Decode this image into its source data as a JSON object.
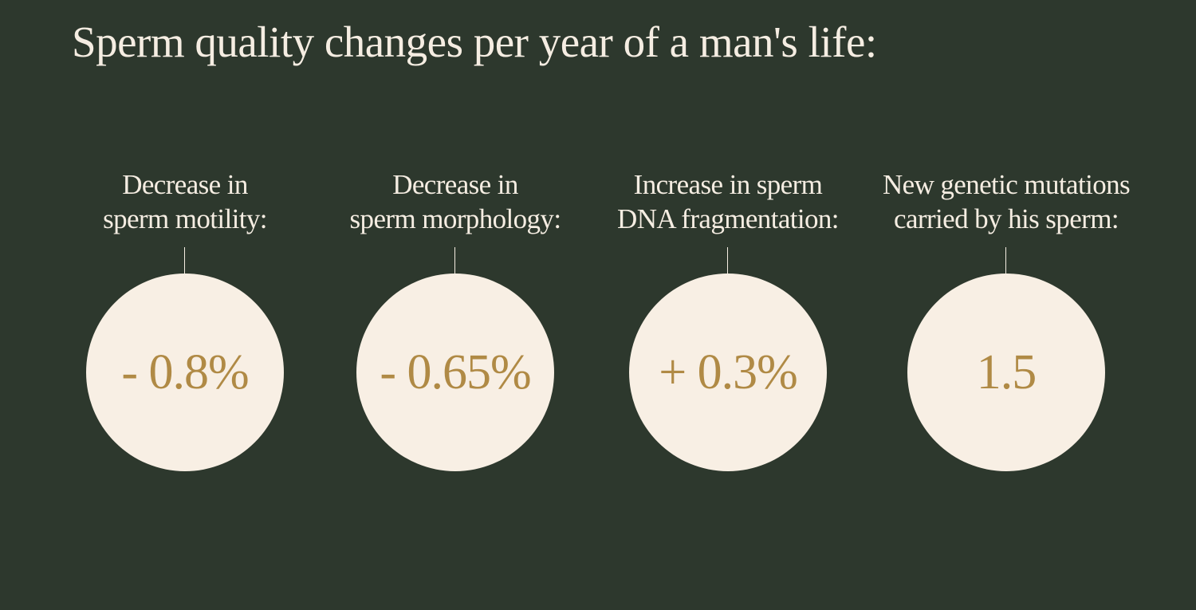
{
  "title": "Sperm quality changes per year of a man's life:",
  "stats": [
    {
      "label_line1": "Decrease in",
      "label_line2": "sperm motility:",
      "value": "- 0.8%"
    },
    {
      "label_line1": "Decrease in",
      "label_line2": "sperm morphology:",
      "value": "- 0.65%"
    },
    {
      "label_line1": "Increase in sperm",
      "label_line2": "DNA fragmentation:",
      "value": "+ 0.3%"
    },
    {
      "label_line1": "New genetic mutations",
      "label_line2": "carried by his sperm:",
      "value": "1.5"
    }
  ],
  "colors": {
    "background": "#2d382d",
    "text": "#f5ede2",
    "circle": "#f8efe4",
    "value": "#b08a45"
  }
}
